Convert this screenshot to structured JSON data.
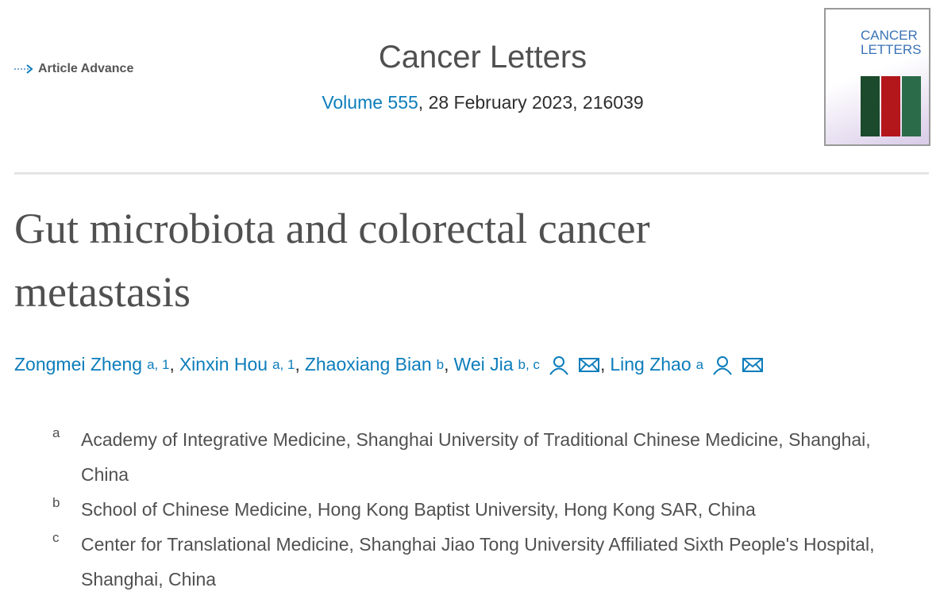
{
  "header": {
    "badge": "Article Advance",
    "journal": "Cancer Letters",
    "volume": "Volume 555",
    "issue_info": ", 28 February 2023, 216039",
    "cover_title": [
      "CANCER",
      "LETTERS"
    ]
  },
  "title": "Gut microbiota and colorectal cancer metastasis",
  "author_separator": ",",
  "authors": [
    {
      "name": "Zongmei Zheng",
      "sup": "a, 1",
      "corresponding": false
    },
    {
      "name": "Xinxin Hou",
      "sup": "a, 1",
      "corresponding": false
    },
    {
      "name": "Zhaoxiang Bian",
      "sup": "b",
      "corresponding": false
    },
    {
      "name": "Wei Jia",
      "sup": "b, c",
      "corresponding": true
    },
    {
      "name": "Ling Zhao",
      "sup": "a",
      "corresponding": true
    }
  ],
  "affiliations": [
    {
      "label": "a",
      "text": "Academy of Integrative Medicine, Shanghai University of Traditional Chinese Medicine, Shanghai, China"
    },
    {
      "label": "b",
      "text": "School of Chinese Medicine, Hong Kong Baptist University, Hong Kong SAR, China"
    },
    {
      "label": "c",
      "text": "Center for Translational Medicine, Shanghai Jiao Tong University Affiliated Sixth People's Hospital, Shanghai, China"
    }
  ]
}
